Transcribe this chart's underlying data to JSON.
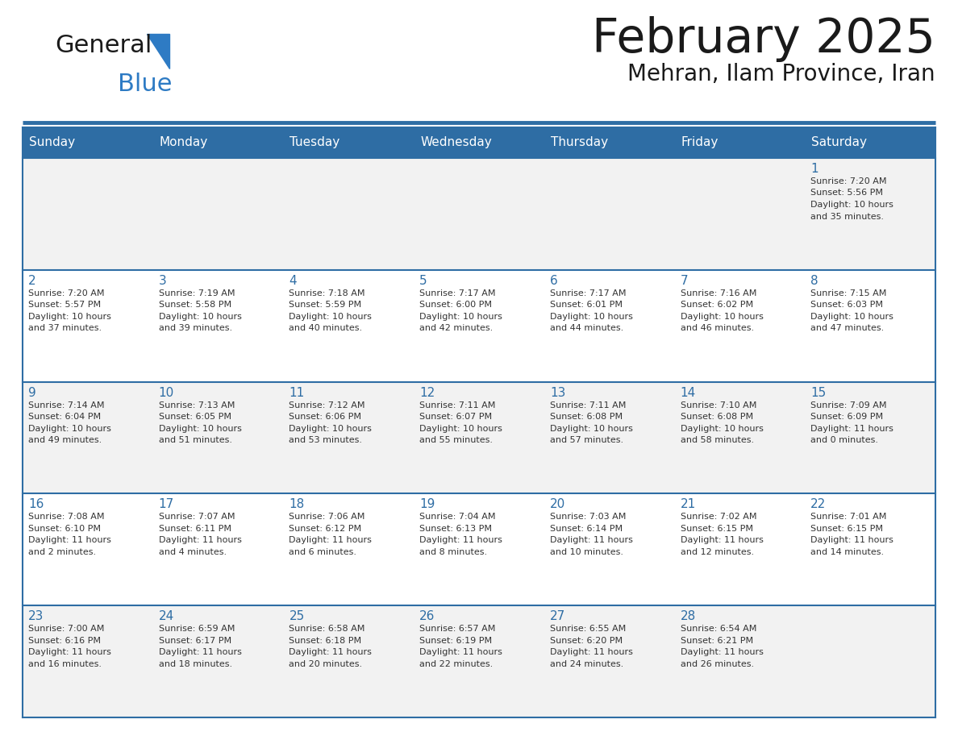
{
  "title": "February 2025",
  "subtitle": "Mehran, Ilam Province, Iran",
  "header_bg": "#2E6DA4",
  "header_text_color": "#FFFFFF",
  "cell_bg_odd": "#F2F2F2",
  "cell_bg_even": "#FFFFFF",
  "day_number_color": "#2E6DA4",
  "info_text_color": "#333333",
  "grid_color": "#2E6DA4",
  "separator_color": "#2E6DA4",
  "days_of_week": [
    "Sunday",
    "Monday",
    "Tuesday",
    "Wednesday",
    "Thursday",
    "Friday",
    "Saturday"
  ],
  "weeks": [
    [
      {
        "day": null,
        "info": ""
      },
      {
        "day": null,
        "info": ""
      },
      {
        "day": null,
        "info": ""
      },
      {
        "day": null,
        "info": ""
      },
      {
        "day": null,
        "info": ""
      },
      {
        "day": null,
        "info": ""
      },
      {
        "day": 1,
        "info": "Sunrise: 7:20 AM\nSunset: 5:56 PM\nDaylight: 10 hours\nand 35 minutes."
      }
    ],
    [
      {
        "day": 2,
        "info": "Sunrise: 7:20 AM\nSunset: 5:57 PM\nDaylight: 10 hours\nand 37 minutes."
      },
      {
        "day": 3,
        "info": "Sunrise: 7:19 AM\nSunset: 5:58 PM\nDaylight: 10 hours\nand 39 minutes."
      },
      {
        "day": 4,
        "info": "Sunrise: 7:18 AM\nSunset: 5:59 PM\nDaylight: 10 hours\nand 40 minutes."
      },
      {
        "day": 5,
        "info": "Sunrise: 7:17 AM\nSunset: 6:00 PM\nDaylight: 10 hours\nand 42 minutes."
      },
      {
        "day": 6,
        "info": "Sunrise: 7:17 AM\nSunset: 6:01 PM\nDaylight: 10 hours\nand 44 minutes."
      },
      {
        "day": 7,
        "info": "Sunrise: 7:16 AM\nSunset: 6:02 PM\nDaylight: 10 hours\nand 46 minutes."
      },
      {
        "day": 8,
        "info": "Sunrise: 7:15 AM\nSunset: 6:03 PM\nDaylight: 10 hours\nand 47 minutes."
      }
    ],
    [
      {
        "day": 9,
        "info": "Sunrise: 7:14 AM\nSunset: 6:04 PM\nDaylight: 10 hours\nand 49 minutes."
      },
      {
        "day": 10,
        "info": "Sunrise: 7:13 AM\nSunset: 6:05 PM\nDaylight: 10 hours\nand 51 minutes."
      },
      {
        "day": 11,
        "info": "Sunrise: 7:12 AM\nSunset: 6:06 PM\nDaylight: 10 hours\nand 53 minutes."
      },
      {
        "day": 12,
        "info": "Sunrise: 7:11 AM\nSunset: 6:07 PM\nDaylight: 10 hours\nand 55 minutes."
      },
      {
        "day": 13,
        "info": "Sunrise: 7:11 AM\nSunset: 6:08 PM\nDaylight: 10 hours\nand 57 minutes."
      },
      {
        "day": 14,
        "info": "Sunrise: 7:10 AM\nSunset: 6:08 PM\nDaylight: 10 hours\nand 58 minutes."
      },
      {
        "day": 15,
        "info": "Sunrise: 7:09 AM\nSunset: 6:09 PM\nDaylight: 11 hours\nand 0 minutes."
      }
    ],
    [
      {
        "day": 16,
        "info": "Sunrise: 7:08 AM\nSunset: 6:10 PM\nDaylight: 11 hours\nand 2 minutes."
      },
      {
        "day": 17,
        "info": "Sunrise: 7:07 AM\nSunset: 6:11 PM\nDaylight: 11 hours\nand 4 minutes."
      },
      {
        "day": 18,
        "info": "Sunrise: 7:06 AM\nSunset: 6:12 PM\nDaylight: 11 hours\nand 6 minutes."
      },
      {
        "day": 19,
        "info": "Sunrise: 7:04 AM\nSunset: 6:13 PM\nDaylight: 11 hours\nand 8 minutes."
      },
      {
        "day": 20,
        "info": "Sunrise: 7:03 AM\nSunset: 6:14 PM\nDaylight: 11 hours\nand 10 minutes."
      },
      {
        "day": 21,
        "info": "Sunrise: 7:02 AM\nSunset: 6:15 PM\nDaylight: 11 hours\nand 12 minutes."
      },
      {
        "day": 22,
        "info": "Sunrise: 7:01 AM\nSunset: 6:15 PM\nDaylight: 11 hours\nand 14 minutes."
      }
    ],
    [
      {
        "day": 23,
        "info": "Sunrise: 7:00 AM\nSunset: 6:16 PM\nDaylight: 11 hours\nand 16 minutes."
      },
      {
        "day": 24,
        "info": "Sunrise: 6:59 AM\nSunset: 6:17 PM\nDaylight: 11 hours\nand 18 minutes."
      },
      {
        "day": 25,
        "info": "Sunrise: 6:58 AM\nSunset: 6:18 PM\nDaylight: 11 hours\nand 20 minutes."
      },
      {
        "day": 26,
        "info": "Sunrise: 6:57 AM\nSunset: 6:19 PM\nDaylight: 11 hours\nand 22 minutes."
      },
      {
        "day": 27,
        "info": "Sunrise: 6:55 AM\nSunset: 6:20 PM\nDaylight: 11 hours\nand 24 minutes."
      },
      {
        "day": 28,
        "info": "Sunrise: 6:54 AM\nSunset: 6:21 PM\nDaylight: 11 hours\nand 26 minutes."
      },
      {
        "day": null,
        "info": ""
      }
    ]
  ]
}
